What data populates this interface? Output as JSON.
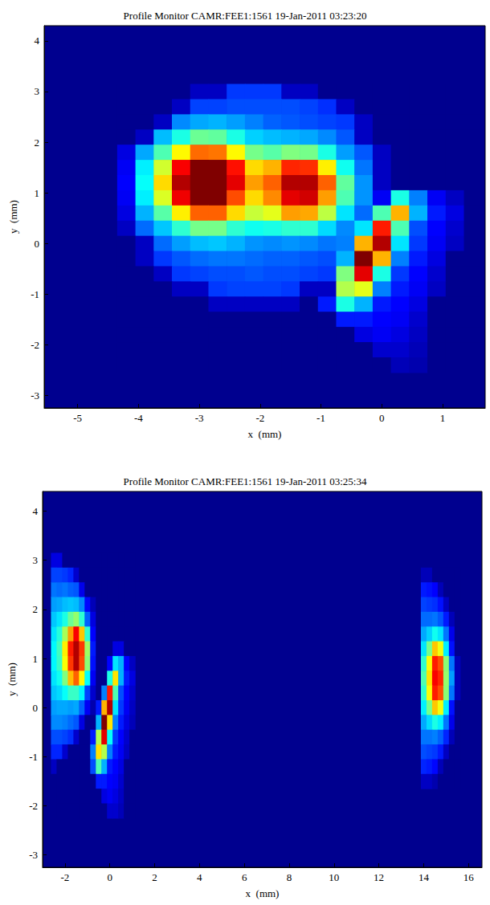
{
  "chart_data": [
    {
      "type": "heatmap",
      "title": "Profile Monitor CAMR:FEE1:1561 19-Jan-2011 03:23:20",
      "x_label": "x  (mm)",
      "y_label": "y  (mm)",
      "xlim": [
        -5.55,
        1.7
      ],
      "ylim": [
        -3.25,
        4.3
      ],
      "xticks": [
        -5,
        -4,
        -3,
        -2,
        -1,
        0,
        1
      ],
      "yticks": [
        -3,
        -2,
        -1,
        0,
        1,
        2,
        3,
        4
      ],
      "grid": false,
      "color": "jet",
      "color_range": [
        0,
        100
      ],
      "cells": [
        {
          "x": [
            -4.2,
            -3.9,
            -3.6,
            -3.3,
            -3.0,
            -2.7,
            -2.4,
            -2.1,
            -1.8,
            -1.5,
            -1.2,
            -0.9,
            -0.6,
            -0.3,
            0,
            0.3,
            0.6,
            0.9,
            1.2,
            1.5
          ],
          "y": [
            3.0,
            2.7,
            2.4,
            2.1,
            1.8,
            1.5,
            1.2,
            0.9,
            0.6,
            0.3,
            0,
            -0.3,
            -0.6,
            -0.9,
            -1.2,
            -1.5,
            -1.8,
            -2.1,
            -2.4
          ],
          "values": [
            [
              0,
              0,
              0,
              0,
              5,
              5,
              18,
              18,
              18,
              5,
              5,
              0,
              0,
              0,
              0,
              0,
              0,
              0,
              0,
              0
            ],
            [
              0,
              0,
              0,
              5,
              19,
              19,
              20,
              20,
              20,
              20,
              19,
              17,
              5,
              0,
              0,
              0,
              0,
              0,
              0,
              0
            ],
            [
              0,
              0,
              5,
              26,
              29,
              30,
              28,
              25,
              22,
              21,
              20,
              19,
              18,
              5,
              0,
              0,
              0,
              0,
              0,
              0
            ],
            [
              0,
              5,
              31,
              40,
              48,
              47,
              40,
              33,
              31,
              30,
              29,
              26,
              21,
              5,
              0,
              0,
              0,
              0,
              0,
              0
            ],
            [
              8,
              29,
              45,
              63,
              77,
              76,
              63,
              49,
              46,
              50,
              49,
              40,
              28,
              21,
              5,
              0,
              0,
              0,
              0,
              0
            ],
            [
              10,
              36,
              58,
              88,
              100,
              100,
              86,
              66,
              70,
              84,
              83,
              64,
              39,
              24,
              5,
              0,
              0,
              0,
              0,
              0
            ],
            [
              11,
              38,
              66,
              95,
              100,
              100,
              90,
              72,
              78,
              95,
              95,
              78,
              47,
              27,
              5,
              0,
              0,
              0,
              0,
              0
            ],
            [
              10,
              36,
              59,
              89,
              100,
              100,
              80,
              66,
              74,
              90,
              92,
              72,
              45,
              27,
              10,
              40,
              25,
              10,
              5,
              0
            ],
            [
              8,
              30,
              46,
              64,
              78,
              78,
              66,
              57,
              60,
              72,
              71,
              56,
              35,
              23,
              45,
              70,
              30,
              15,
              8,
              0
            ],
            [
              5,
              23,
              32,
              42,
              49,
              49,
              42,
              39,
              40,
              42,
              42,
              34,
              26,
              35,
              85,
              45,
              20,
              12,
              6,
              0
            ],
            [
              0,
              5,
              23,
              28,
              31,
              32,
              30,
              27,
              26,
              27,
              26,
              24,
              25,
              70,
              95,
              35,
              18,
              10,
              5,
              0
            ],
            [
              0,
              5,
              18,
              21,
              23,
              24,
              24,
              23,
              22,
              22,
              21,
              20,
              30,
              100,
              70,
              25,
              15,
              8,
              0,
              0
            ],
            [
              0,
              0,
              5,
              18,
              19,
              20,
              20,
              21,
              20,
              20,
              19,
              18,
              50,
              90,
              40,
              18,
              12,
              6,
              0,
              0
            ],
            [
              0,
              0,
              0,
              5,
              5,
              18,
              19,
              19,
              19,
              18,
              5,
              5,
              55,
              60,
              25,
              15,
              10,
              5,
              0,
              0
            ],
            [
              0,
              0,
              0,
              0,
              0,
              5,
              5,
              5,
              5,
              5,
              0,
              15,
              40,
              30,
              15,
              12,
              8,
              0,
              0,
              0
            ],
            [
              0,
              0,
              0,
              0,
              0,
              0,
              0,
              0,
              0,
              0,
              0,
              0,
              15,
              15,
              12,
              10,
              6,
              0,
              0,
              0
            ],
            [
              0,
              0,
              0,
              0,
              0,
              0,
              0,
              0,
              0,
              0,
              0,
              0,
              0,
              8,
              10,
              8,
              5,
              0,
              0,
              0
            ],
            [
              0,
              0,
              0,
              0,
              0,
              0,
              0,
              0,
              0,
              0,
              0,
              0,
              0,
              0,
              6,
              6,
              4,
              0,
              0,
              0
            ],
            [
              0,
              0,
              0,
              0,
              0,
              0,
              0,
              0,
              0,
              0,
              0,
              0,
              0,
              0,
              0,
              4,
              3,
              0,
              0,
              0
            ]
          ]
        }
      ]
    },
    {
      "type": "heatmap",
      "title": "Profile Monitor CAMR:FEE1:1561 19-Jan-2011 03:25:34",
      "x_label": "x  (mm)",
      "y_label": "y  (mm)",
      "xlim": [
        -3.0,
        16.6
      ],
      "ylim": [
        -3.25,
        4.4
      ],
      "xticks": [
        -2,
        0,
        2,
        4,
        6,
        8,
        10,
        12,
        14,
        16
      ],
      "yticks": [
        -3,
        -2,
        -1,
        0,
        1,
        2,
        3,
        4
      ],
      "grid": false,
      "color": "jet",
      "color_range": [
        0,
        100
      ],
      "cells": [
        {
          "x": [
            -2.5,
            -2.25,
            -2.0,
            -1.75,
            -1.5,
            -1.25,
            -1.0,
            -0.75,
            -0.5,
            -0.25,
            0,
            0.25,
            0.5,
            0.75,
            1.0
          ],
          "y": [
            3.0,
            2.7,
            2.4,
            2.1,
            1.8,
            1.5,
            1.2,
            0.9,
            0.6,
            0.3,
            0,
            -0.3,
            -0.6,
            -0.9,
            -1.2,
            -1.5,
            -1.8,
            -2.1
          ],
          "values": [
            [
              8,
              8,
              0,
              0,
              0,
              0,
              0,
              0,
              0,
              0,
              0,
              0,
              0,
              0,
              0
            ],
            [
              19,
              19,
              18,
              16,
              6,
              0,
              0,
              0,
              0,
              0,
              0,
              0,
              0,
              0,
              0
            ],
            [
              24,
              23,
              24,
              22,
              21,
              9,
              0,
              0,
              0,
              0,
              0,
              0,
              0,
              0,
              0
            ],
            [
              28,
              29,
              31,
              32,
              31,
              26,
              13,
              4,
              0,
              0,
              0,
              0,
              0,
              0,
              0
            ],
            [
              32,
              35,
              40,
              48,
              52,
              42,
              22,
              8,
              0,
              0,
              0,
              0,
              0,
              0,
              0
            ],
            [
              35,
              41,
              54,
              72,
              88,
              68,
              42,
              12,
              0,
              0,
              0,
              0,
              0,
              0,
              0
            ],
            [
              37,
              44,
              64,
              85,
              95,
              82,
              53,
              15,
              0,
              0,
              0,
              8,
              8,
              0,
              0
            ],
            [
              37,
              43,
              62,
              82,
              95,
              80,
              51,
              14,
              0,
              0,
              12,
              35,
              30,
              12,
              5
            ],
            [
              35,
              39,
              50,
              69,
              78,
              63,
              38,
              10,
              0,
              0,
              40,
              65,
              30,
              15,
              8
            ],
            [
              32,
              34,
              38,
              43,
              43,
              37,
              19,
              6,
              0,
              25,
              85,
              45,
              20,
              12,
              6
            ],
            [
              28,
              29,
              29,
              28,
              29,
              22,
              10,
              3,
              15,
              70,
              95,
              35,
              18,
              10,
              5
            ],
            [
              26,
              26,
              25,
              23,
              21,
              8,
              0,
              0,
              30,
              100,
              65,
              25,
              15,
              8,
              4
            ],
            [
              20,
              20,
              19,
              17,
              6,
              0,
              0,
              15,
              55,
              90,
              38,
              18,
              12,
              6,
              0
            ],
            [
              16,
              16,
              6,
              0,
              0,
              0,
              0,
              25,
              65,
              55,
              25,
              15,
              10,
              5,
              0
            ],
            [
              5,
              0,
              0,
              0,
              0,
              0,
              0,
              20,
              45,
              30,
              15,
              12,
              8,
              0,
              0
            ],
            [
              0,
              0,
              0,
              0,
              0,
              0,
              0,
              0,
              15,
              15,
              12,
              10,
              6,
              0,
              0
            ],
            [
              0,
              0,
              0,
              0,
              0,
              0,
              0,
              0,
              0,
              8,
              10,
              8,
              5,
              0,
              0
            ],
            [
              0,
              0,
              0,
              0,
              0,
              0,
              0,
              0,
              0,
              0,
              6,
              6,
              4,
              0,
              0
            ]
          ]
        },
        {
          "x": [
            14.0,
            14.25,
            14.5,
            14.75,
            15.0,
            15.25,
            15.5
          ],
          "y": [
            2.7,
            2.4,
            2.1,
            1.8,
            1.5,
            1.2,
            0.9,
            0.6,
            0.3,
            0,
            -0.3,
            -0.6,
            -0.9,
            -1.2,
            -1.5
          ],
          "values": [
            [
              4,
              4,
              0,
              0,
              0,
              0,
              0
            ],
            [
              15,
              14,
              12,
              4,
              0,
              0,
              0
            ],
            [
              19,
              18,
              17,
              14,
              5,
              0,
              0
            ],
            [
              23,
              23,
              24,
              21,
              15,
              4,
              0
            ],
            [
              29,
              33,
              39,
              35,
              24,
              9,
              0
            ],
            [
              35,
              49,
              68,
              61,
              36,
              14,
              0
            ],
            [
              42,
              62,
              85,
              80,
              51,
              24,
              4
            ],
            [
              45,
              65,
              88,
              84,
              52,
              28,
              4
            ],
            [
              42,
              62,
              85,
              80,
              51,
              24,
              4
            ],
            [
              36,
              49,
              68,
              61,
              36,
              14,
              0
            ],
            [
              29,
              34,
              40,
              36,
              24,
              9,
              0
            ],
            [
              24,
              24,
              25,
              22,
              16,
              4,
              0
            ],
            [
              20,
              19,
              18,
              15,
              5,
              0,
              0
            ],
            [
              16,
              15,
              13,
              4,
              0,
              0,
              0
            ],
            [
              5,
              5,
              3,
              0,
              0,
              0,
              0
            ]
          ]
        }
      ]
    }
  ]
}
